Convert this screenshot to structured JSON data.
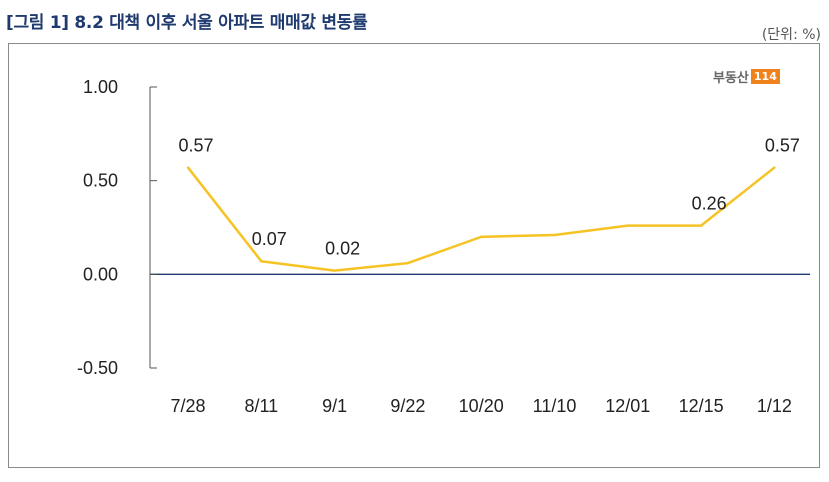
{
  "header": {
    "title": "[그림 1] 8.2 대책 이후 서울 아파트 매매값 변동률",
    "unit": "(단위: %)"
  },
  "logo": {
    "text": "부동산",
    "badge": "114",
    "badge_color": "#f0821e"
  },
  "chart_data": {
    "type": "line",
    "title": "[그림 1] 8.2 대책 이후 서울 아파트 매매값 변동률",
    "xlabel": "",
    "ylabel": "",
    "unit": "(단위: %)",
    "categories": [
      "7/28",
      "8/11",
      "9/1",
      "9/22",
      "10/20",
      "11/10",
      "12/01",
      "12/15",
      "1/12"
    ],
    "series": [
      {
        "name": "",
        "values": [
          0.57,
          0.07,
          0.02,
          0.06,
          0.2,
          0.21,
          0.26,
          0.26,
          0.57
        ],
        "color": "#f5c324"
      }
    ],
    "data_labels": [
      {
        "index": 0,
        "text": "0.57"
      },
      {
        "index": 1,
        "text": "0.07"
      },
      {
        "index": 2,
        "text": "0.02"
      },
      {
        "index": 7,
        "text": "0.26"
      },
      {
        "index": 8,
        "text": "0.57"
      }
    ],
    "ylim": [
      -0.5,
      1.0
    ],
    "yticks": [
      "1.00",
      "0.50",
      "0.00",
      "-0.50"
    ],
    "grid": false,
    "legend": "none"
  }
}
